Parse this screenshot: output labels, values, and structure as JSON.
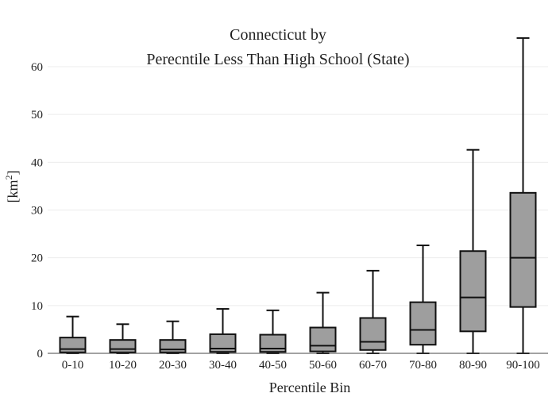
{
  "chart_data": {
    "type": "box",
    "title_line1": "Connecticut  by",
    "title_line2": "Perecntile Less Than High School (State)",
    "xlabel": "Percentile Bin",
    "ylabel_base": "[km",
    "ylabel_sup": "2",
    "ylabel_close": "]",
    "ylim": [
      0,
      64
    ],
    "yticks": [
      0,
      10,
      20,
      30,
      40,
      50,
      60
    ],
    "grid": true,
    "colors": {
      "box_fill": "#9e9e9e",
      "box_stroke": "#111111",
      "grid": "#ececec"
    },
    "categories": [
      "0-10",
      "10-20",
      "20-30",
      "30-40",
      "40-50",
      "50-60",
      "60-70",
      "70-80",
      "80-90",
      "90-100"
    ],
    "boxes": [
      {
        "min": 0,
        "q1": 0.2,
        "median": 0.9,
        "q3": 3.3,
        "max": 7.7
      },
      {
        "min": 0,
        "q1": 0.2,
        "median": 0.9,
        "q3": 2.8,
        "max": 6.1
      },
      {
        "min": 0,
        "q1": 0.2,
        "median": 0.8,
        "q3": 2.8,
        "max": 6.7
      },
      {
        "min": 0,
        "q1": 0.3,
        "median": 1.0,
        "q3": 4.0,
        "max": 9.3
      },
      {
        "min": 0,
        "q1": 0.3,
        "median": 1.0,
        "q3": 3.9,
        "max": 9.0
      },
      {
        "min": 0,
        "q1": 0.4,
        "median": 1.6,
        "q3": 5.4,
        "max": 12.7
      },
      {
        "min": 0,
        "q1": 0.7,
        "median": 2.4,
        "q3": 7.4,
        "max": 17.3
      },
      {
        "min": 0,
        "q1": 1.8,
        "median": 4.9,
        "q3": 10.7,
        "max": 22.6
      },
      {
        "min": 0,
        "q1": 4.6,
        "median": 11.7,
        "q3": 21.4,
        "max": 42.6
      },
      {
        "min": 0,
        "q1": 9.7,
        "median": 20.0,
        "q3": 33.6,
        "max": 66.0
      }
    ]
  }
}
